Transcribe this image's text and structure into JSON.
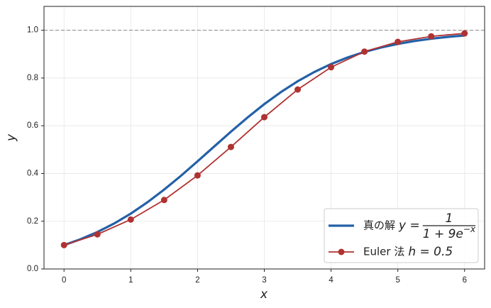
{
  "chart_data": {
    "type": "line",
    "xlabel": "x",
    "ylabel": "y",
    "xlim": [
      -0.3,
      6.3
    ],
    "ylim": [
      0,
      1.1
    ],
    "xticks": [
      0,
      1,
      2,
      3,
      4,
      5,
      6
    ],
    "yticks": [
      {
        "value": 0,
        "label": "0.0"
      },
      0.2,
      0.4,
      0.6,
      0.8,
      {
        "value": 1,
        "label": "1.0"
      }
    ],
    "grid": true,
    "hline": 1.0,
    "legend": "lower right",
    "series": [
      {
        "name": "真の解",
        "formula": {
          "lhs": "y =",
          "numerator": "1",
          "denominator": "1 + 9e",
          "exponent": "−x"
        },
        "color": "#2460a7",
        "markers": false,
        "x": [
          0,
          0.25,
          0.5,
          0.75,
          1,
          1.25,
          1.5,
          1.75,
          2,
          2.25,
          2.5,
          2.75,
          3,
          3.25,
          3.5,
          3.75,
          4,
          4.25,
          4.5,
          4.75,
          5,
          5.25,
          5.5,
          5.75,
          6
        ],
        "values": [
          0.1,
          0.1249,
          0.1548,
          0.1904,
          0.232,
          0.2795,
          0.3325,
          0.39,
          0.4509,
          0.5132,
          0.5751,
          0.6348,
          0.6906,
          0.7413,
          0.7863,
          0.8253,
          0.8585,
          0.8862,
          0.9091,
          0.9277,
          0.9428,
          0.9549,
          0.9645,
          0.9722,
          0.9782
        ]
      },
      {
        "name": "Euler 法",
        "formula": {
          "lhs": "h = 0.5"
        },
        "color": "#b03232",
        "markers": true,
        "x": [
          0,
          0.5,
          1,
          1.5,
          2,
          2.5,
          3,
          3.5,
          4,
          4.5,
          5,
          5.5,
          6
        ],
        "values": [
          0.1,
          0.145,
          0.207,
          0.2891,
          0.3919,
          0.5111,
          0.636,
          0.7518,
          0.8451,
          0.9106,
          0.9513,
          0.9745,
          0.9869
        ]
      }
    ]
  }
}
